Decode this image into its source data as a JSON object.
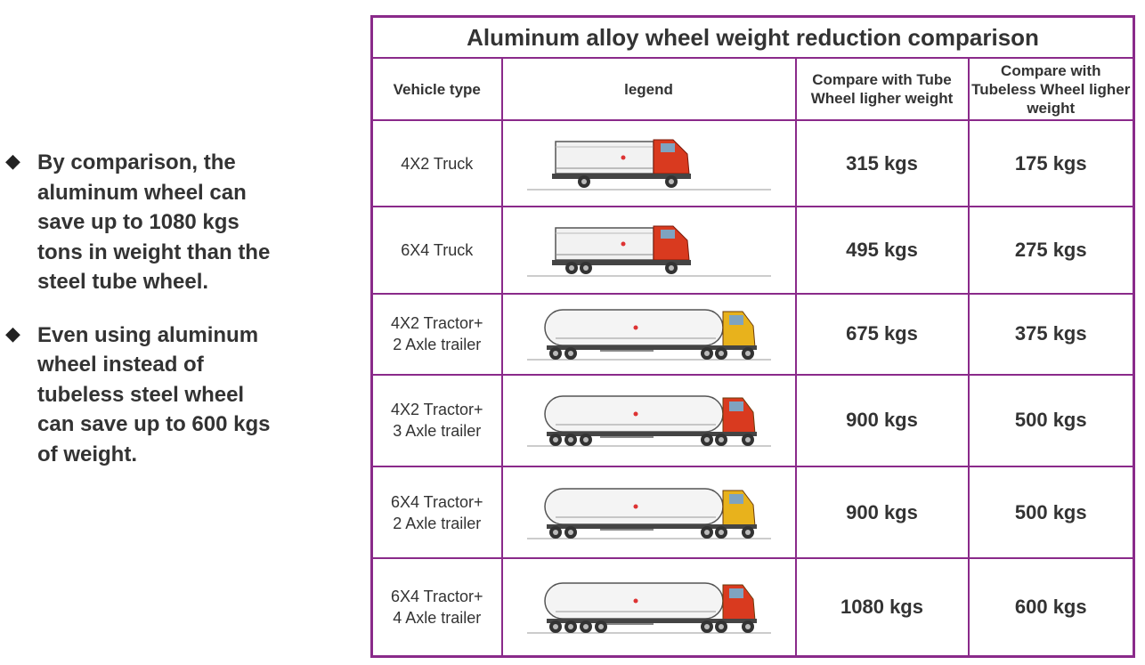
{
  "bullets": [
    {
      "marker": "◆",
      "text": "By comparison, the aluminum wheel can save up to 1080 kgs tons in weight than the steel tube wheel."
    },
    {
      "marker": "◆",
      "text": "Even using aluminum wheel instead of tubeless steel wheel can save up to 600 kgs of weight."
    }
  ],
  "table": {
    "title": "Aluminum alloy wheel weight reduction comparison",
    "headers": {
      "vehicle_type": "Vehicle type",
      "legend": "legend",
      "tube": "Compare with Tube Wheel ligher weight",
      "tubeless": "Compare with Tubeless Wheel ligher weight"
    },
    "rows": [
      {
        "type_line1": "4X2 Truck",
        "type_line2": "",
        "tube": "315 kgs",
        "tubeless": "175 kgs",
        "cab_color": "#d93a1f",
        "kind": "truck2"
      },
      {
        "type_line1": "6X4 Truck",
        "type_line2": "",
        "tube": "495 kgs",
        "tubeless": "275 kgs",
        "cab_color": "#d93a1f",
        "kind": "truck3"
      },
      {
        "type_line1": "4X2 Tractor+",
        "type_line2": "2 Axle trailer",
        "tube": "675 kgs",
        "tubeless": "375 kgs",
        "cab_color": "#e8b21c",
        "kind": "tanker2"
      },
      {
        "type_line1": "4X2 Tractor+",
        "type_line2": "3 Axle trailer",
        "tube": "900 kgs",
        "tubeless": "500 kgs",
        "cab_color": "#d93a1f",
        "kind": "tanker3"
      },
      {
        "type_line1": "6X4 Tractor+",
        "type_line2": "2 Axle trailer",
        "tube": "900 kgs",
        "tubeless": "500 kgs",
        "cab_color": "#e8b21c",
        "kind": "tanker2b"
      },
      {
        "type_line1": "6X4 Tractor+",
        "type_line2": "4 Axle trailer",
        "tube": "1080 kgs",
        "tubeless": "600 kgs",
        "cab_color": "#d93a1f",
        "kind": "tanker4"
      }
    ]
  },
  "colors": {
    "border": "#8a2a8a",
    "text": "#333333"
  }
}
